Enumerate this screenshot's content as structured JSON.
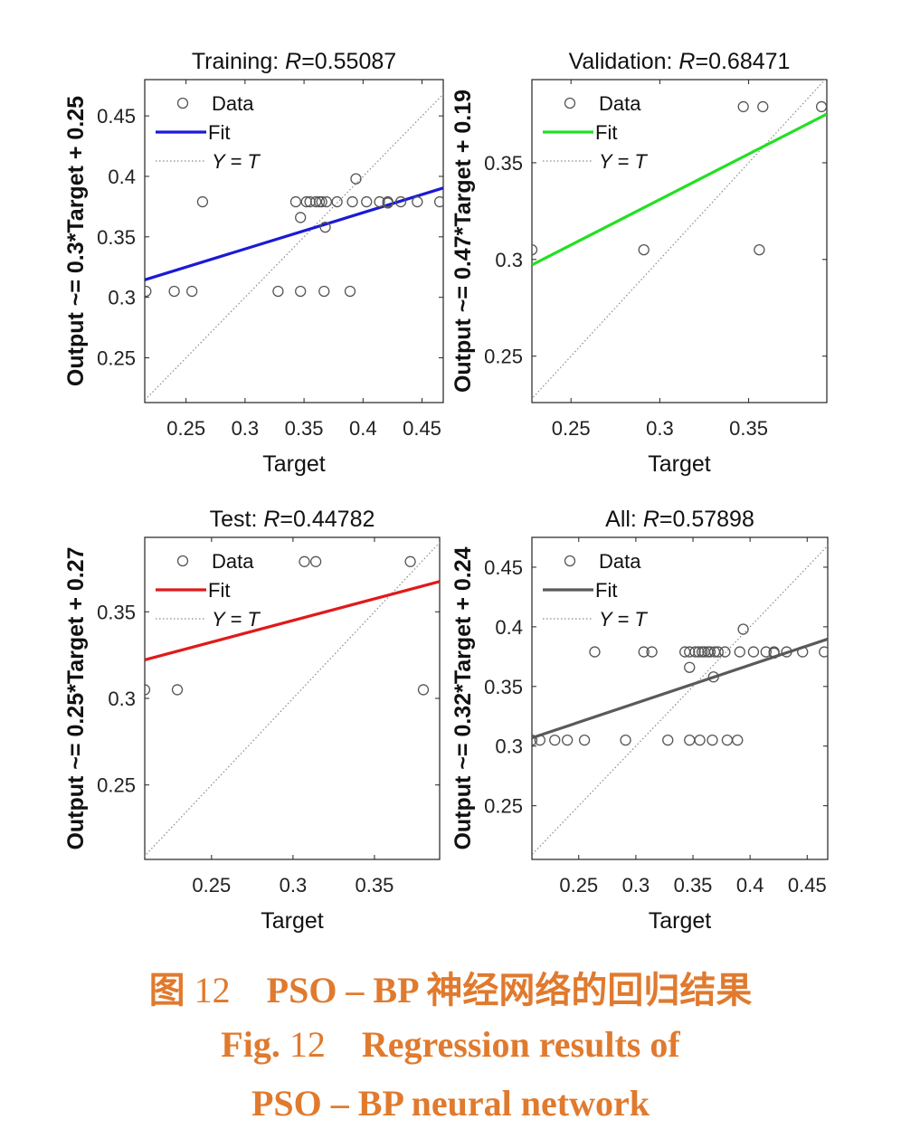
{
  "figure": {
    "panels": [
      {
        "id": "training",
        "title_prefix": "Training: ",
        "title_r_label": "R",
        "title_r_value": "=0.55087"
      },
      {
        "id": "validation",
        "title_prefix": "Validation: ",
        "title_r_label": "R",
        "title_r_value": "=0.68471"
      },
      {
        "id": "test",
        "title_prefix": "Test: ",
        "title_r_label": "R",
        "title_r_value": "=0.44782"
      },
      {
        "id": "all",
        "title_prefix": "All: ",
        "title_r_label": "R",
        "title_r_value": "=0.57898"
      }
    ],
    "legend_labels": {
      "data": "Data",
      "fit": "Fit",
      "yt": "Y = T"
    },
    "xlabel": "Target"
  },
  "chart_data": [
    {
      "type": "scatter",
      "title": "Training: R=0.55087",
      "xlabel": "Target",
      "ylabel": "Output ~= 0.3*Target + 0.25",
      "xlim": [
        0.215,
        0.468
      ],
      "ylim": [
        0.213,
        0.48
      ],
      "xticks": [
        0.25,
        0.3,
        0.35,
        0.4,
        0.45
      ],
      "yticks": [
        0.25,
        0.3,
        0.35,
        0.4,
        0.45
      ],
      "legend": [
        "Data",
        "Fit",
        "Y = T"
      ],
      "legend_position": "top-left",
      "fit_color": "#1a1ad6",
      "fit_slope": 0.3,
      "fit_intercept": 0.25,
      "points": [
        [
          0.216,
          0.305
        ],
        [
          0.24,
          0.305
        ],
        [
          0.255,
          0.305
        ],
        [
          0.328,
          0.305
        ],
        [
          0.347,
          0.305
        ],
        [
          0.367,
          0.305
        ],
        [
          0.389,
          0.305
        ],
        [
          0.264,
          0.379
        ],
        [
          0.343,
          0.379
        ],
        [
          0.352,
          0.379
        ],
        [
          0.355,
          0.379
        ],
        [
          0.36,
          0.379
        ],
        [
          0.363,
          0.379
        ],
        [
          0.365,
          0.379
        ],
        [
          0.369,
          0.379
        ],
        [
          0.378,
          0.379
        ],
        [
          0.391,
          0.379
        ],
        [
          0.403,
          0.379
        ],
        [
          0.414,
          0.379
        ],
        [
          0.421,
          0.379
        ],
        [
          0.432,
          0.379
        ],
        [
          0.446,
          0.379
        ],
        [
          0.465,
          0.379
        ],
        [
          0.421,
          0.378
        ],
        [
          0.347,
          0.366
        ],
        [
          0.368,
          0.358
        ],
        [
          0.394,
          0.398
        ]
      ]
    },
    {
      "type": "scatter",
      "title": "Validation: R=0.68471",
      "xlabel": "Target",
      "ylabel": "Output ~= 0.47*Target + 0.19",
      "xlim": [
        0.228,
        0.394
      ],
      "ylim": [
        0.226,
        0.393
      ],
      "xticks": [
        0.25,
        0.3,
        0.35
      ],
      "yticks": [
        0.25,
        0.3,
        0.35
      ],
      "legend": [
        "Data",
        "Fit",
        "Y = T"
      ],
      "legend_position": "top-left",
      "fit_color": "#22e022",
      "fit_slope": 0.47,
      "fit_intercept": 0.19,
      "points": [
        [
          0.228,
          0.305
        ],
        [
          0.291,
          0.305
        ],
        [
          0.356,
          0.305
        ],
        [
          0.347,
          0.379
        ],
        [
          0.358,
          0.379
        ],
        [
          0.391,
          0.379
        ]
      ]
    },
    {
      "type": "scatter",
      "title": "Test: R=0.44782",
      "xlabel": "Target",
      "ylabel": "Output ~= 0.25*Target + 0.27",
      "xlim": [
        0.209,
        0.39
      ],
      "ylim": [
        0.207,
        0.393
      ],
      "xticks": [
        0.25,
        0.3,
        0.35
      ],
      "yticks": [
        0.25,
        0.3,
        0.35
      ],
      "legend": [
        "Data",
        "Fit",
        "Y = T"
      ],
      "legend_position": "top-left",
      "fit_color": "#e01a1a",
      "fit_slope": 0.25,
      "fit_intercept": 0.27,
      "points": [
        [
          0.209,
          0.305
        ],
        [
          0.229,
          0.305
        ],
        [
          0.38,
          0.305
        ],
        [
          0.307,
          0.379
        ],
        [
          0.314,
          0.379
        ],
        [
          0.372,
          0.379
        ]
      ]
    },
    {
      "type": "scatter",
      "title": "All: R=0.57898",
      "xlabel": "Target",
      "ylabel": "Output ~= 0.32*Target + 0.24",
      "xlim": [
        0.209,
        0.468
      ],
      "ylim": [
        0.205,
        0.475
      ],
      "xticks": [
        0.25,
        0.3,
        0.35,
        0.4,
        0.45
      ],
      "yticks": [
        0.25,
        0.3,
        0.35,
        0.4,
        0.45
      ],
      "legend": [
        "Data",
        "Fit",
        "Y = T"
      ],
      "legend_position": "top-left",
      "fit_color": "#5a5a5a",
      "fit_slope": 0.32,
      "fit_intercept": 0.24,
      "points": [
        [
          0.209,
          0.305
        ],
        [
          0.216,
          0.305
        ],
        [
          0.229,
          0.305
        ],
        [
          0.24,
          0.305
        ],
        [
          0.255,
          0.305
        ],
        [
          0.291,
          0.305
        ],
        [
          0.328,
          0.305
        ],
        [
          0.347,
          0.305
        ],
        [
          0.356,
          0.305
        ],
        [
          0.367,
          0.305
        ],
        [
          0.38,
          0.305
        ],
        [
          0.389,
          0.305
        ],
        [
          0.264,
          0.379
        ],
        [
          0.307,
          0.379
        ],
        [
          0.314,
          0.379
        ],
        [
          0.343,
          0.379
        ],
        [
          0.347,
          0.379
        ],
        [
          0.352,
          0.379
        ],
        [
          0.355,
          0.379
        ],
        [
          0.358,
          0.379
        ],
        [
          0.36,
          0.379
        ],
        [
          0.363,
          0.379
        ],
        [
          0.365,
          0.379
        ],
        [
          0.369,
          0.379
        ],
        [
          0.372,
          0.379
        ],
        [
          0.378,
          0.379
        ],
        [
          0.391,
          0.379
        ],
        [
          0.403,
          0.379
        ],
        [
          0.414,
          0.379
        ],
        [
          0.421,
          0.379
        ],
        [
          0.432,
          0.379
        ],
        [
          0.446,
          0.379
        ],
        [
          0.465,
          0.379
        ],
        [
          0.421,
          0.378
        ],
        [
          0.347,
          0.366
        ],
        [
          0.368,
          0.358
        ],
        [
          0.394,
          0.398
        ]
      ]
    }
  ],
  "caption": {
    "zh_prefix": "图 ",
    "zh_number": "12",
    "zh_text": "    PSO – BP 神经网络的回归结果",
    "en_prefix": "Fig. ",
    "en_number": "12",
    "en_text": "    Regression results of",
    "en_line2": "PSO – BP neural network"
  }
}
